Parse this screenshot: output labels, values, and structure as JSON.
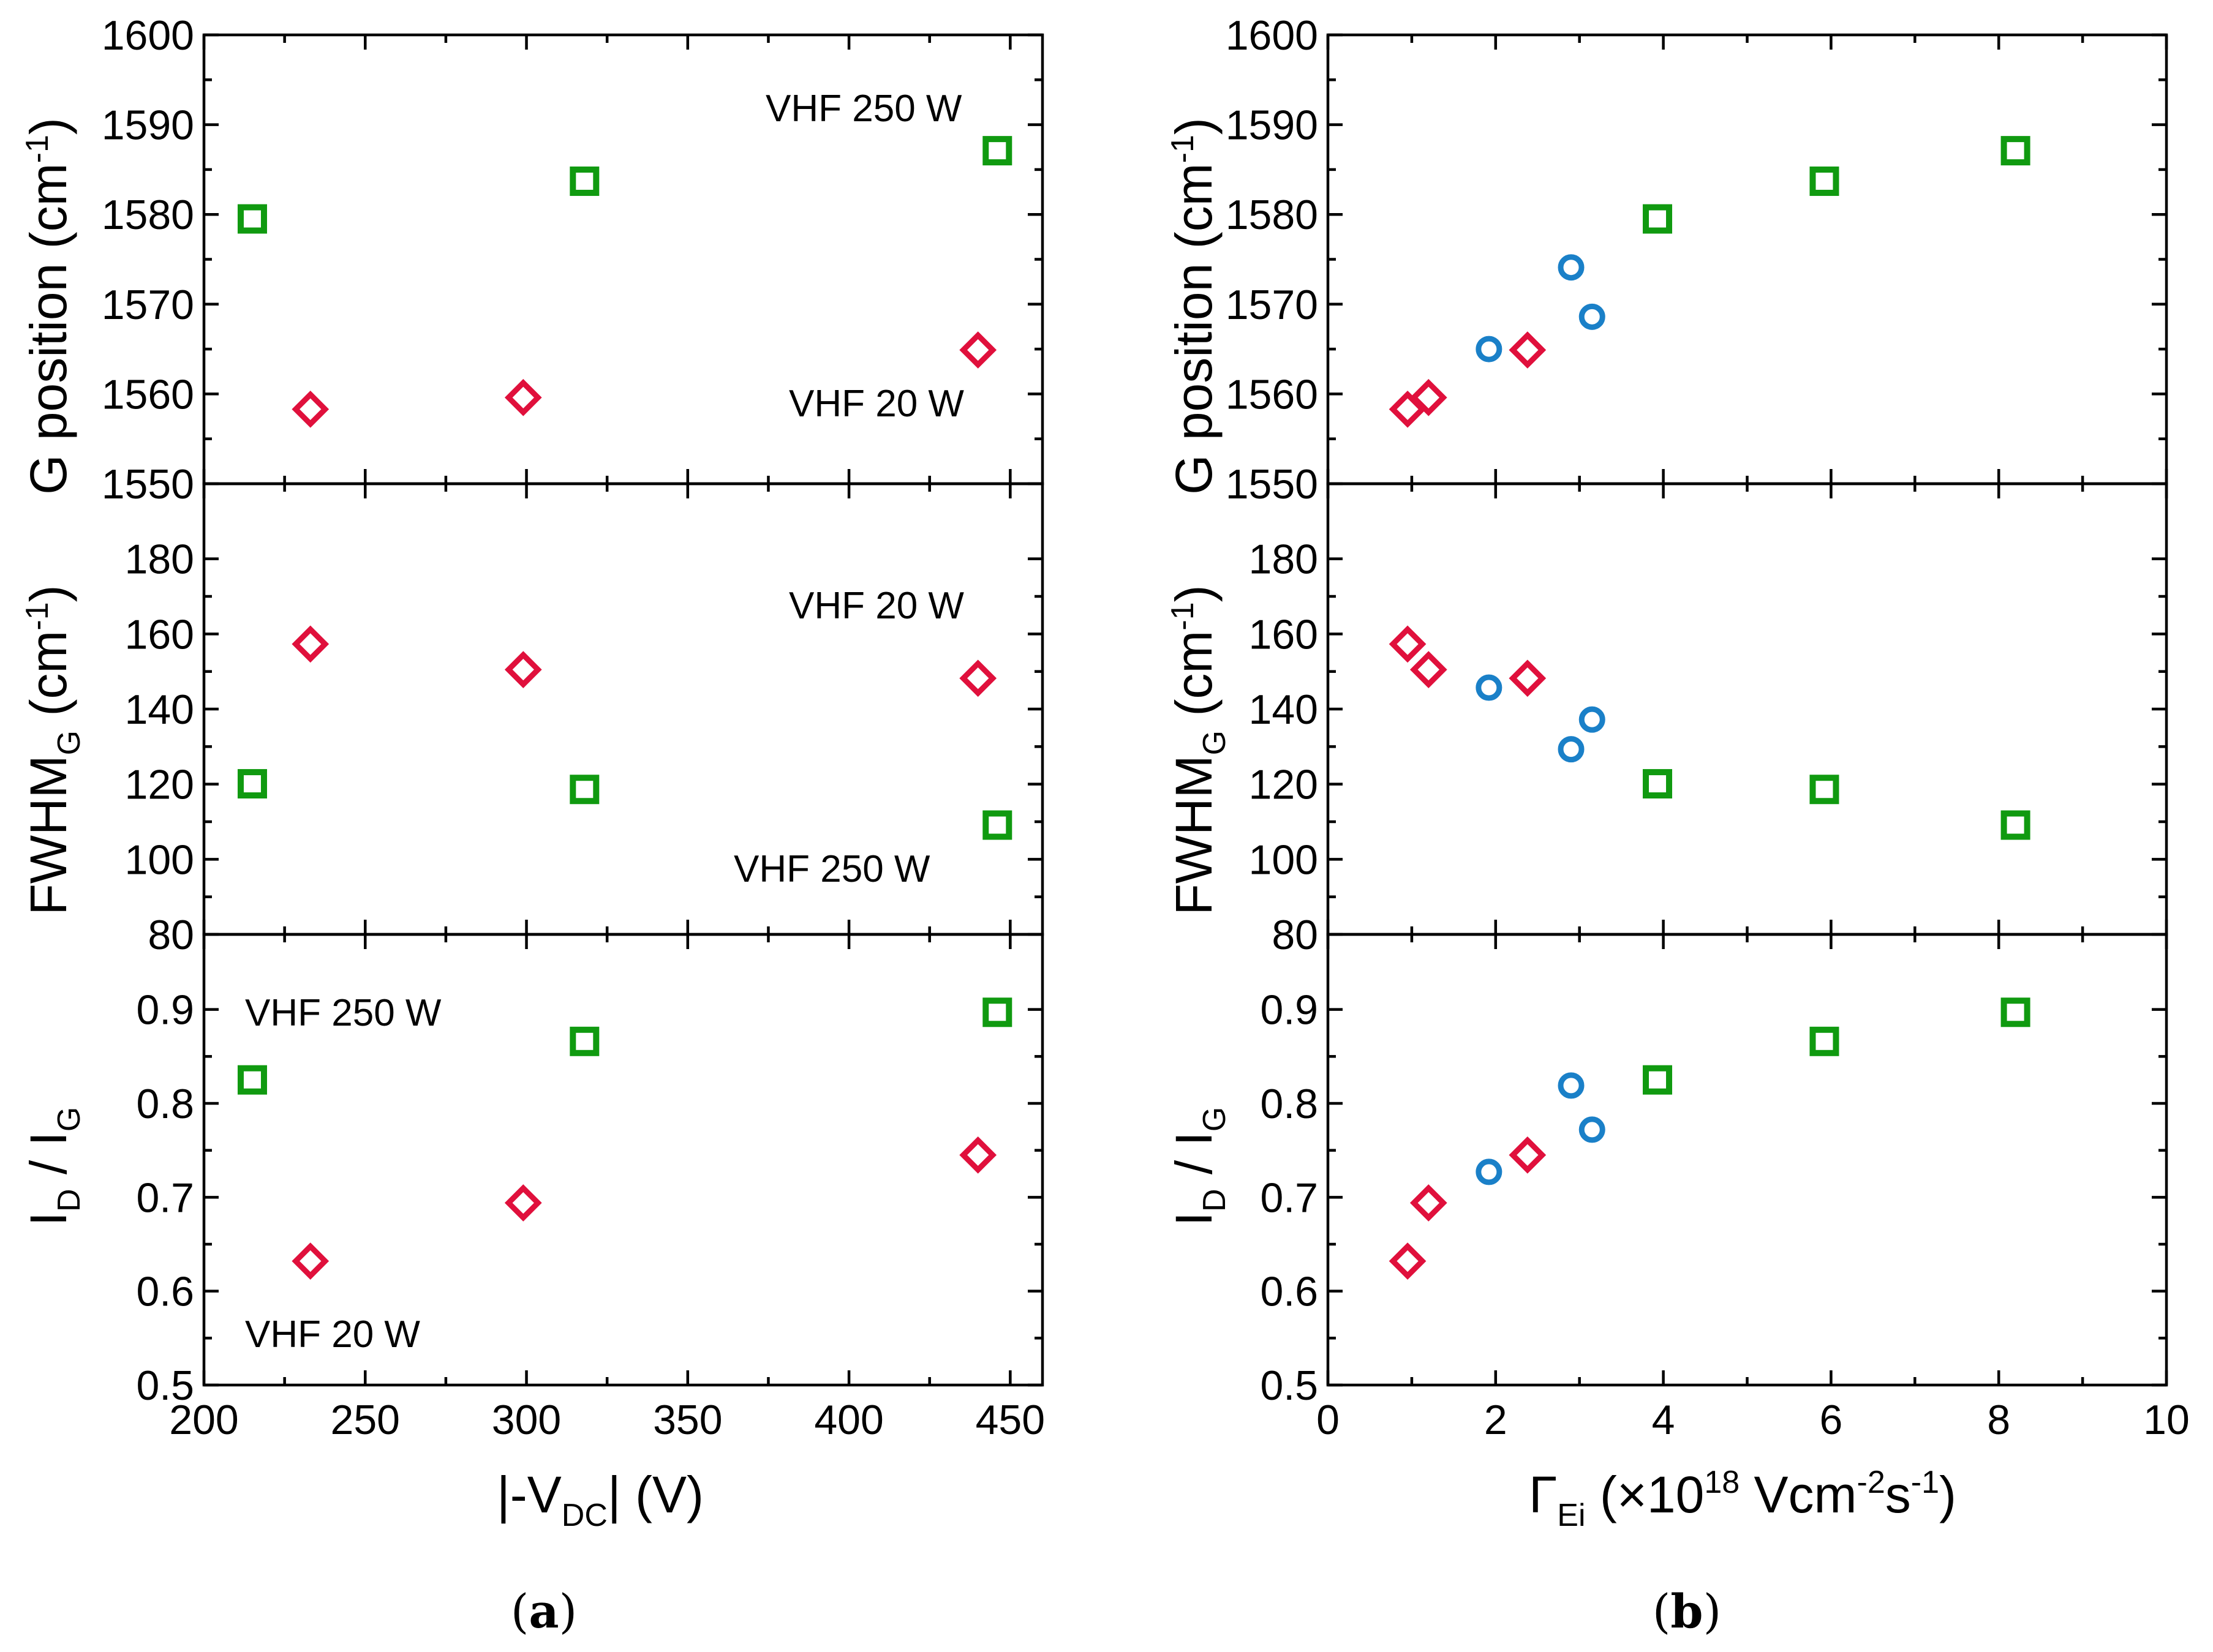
{
  "figure": {
    "panel_labels": {
      "a": {
        "open": "(",
        "letter": "a",
        "close": ")"
      },
      "b": {
        "open": "(",
        "letter": "b",
        "close": ")"
      }
    },
    "left": {
      "xlabel": {
        "pre": "|-V",
        "sub": "DC",
        "post": "| (V)"
      },
      "xticks": [
        "200",
        "250",
        "300",
        "350",
        "400",
        "450"
      ]
    },
    "right": {
      "xlabel": {
        "pre": "Γ",
        "sub": "Ei",
        "mid": " (×10",
        "sup1": "18",
        "mid2": " Vcm",
        "sup2": "-2",
        "mid3": "s",
        "sup3": "-1",
        "post": ")"
      },
      "xticks": [
        "0",
        "2",
        "4",
        "6",
        "8",
        "10"
      ]
    },
    "rows": [
      {
        "ylabel": {
          "pre": "G position (cm",
          "sup": "-1",
          "post": ")"
        },
        "yticks": [
          "1550",
          "1560",
          "1570",
          "1580",
          "1590",
          "1600"
        ]
      },
      {
        "ylabel": {
          "pre": "FWHM",
          "sub": "G",
          "post": " (cm",
          "sup": "-1",
          "post2": ")"
        },
        "yticks": [
          "80",
          "100",
          "120",
          "140",
          "160",
          "180"
        ]
      },
      {
        "ylabel": {
          "pre": "I",
          "sub1": "D",
          "mid": " / I",
          "sub2": "G"
        },
        "yticks": [
          "0.5",
          "0.6",
          "0.7",
          "0.8",
          "0.9"
        ]
      }
    ],
    "annotations": {
      "gpos_250": "VHF 250 W",
      "gpos_20": "VHF 20 W",
      "fwhm_20": "VHF 20 W",
      "fwhm_250": "VHF 250 W",
      "ratio_250": "VHF 250 W",
      "ratio_20": "VHF 20 W"
    },
    "colors": {
      "green": "#109a10",
      "red": "#e0103c",
      "blue": "#1a80c8"
    }
  },
  "chart_data": [
    {
      "type": "scatter",
      "panel": "(a) top",
      "xlabel": "|-VDC| (V)",
      "ylabel": "G position (cm-1)",
      "xlim": [
        200,
        460
      ],
      "ylim": [
        1550,
        1600
      ],
      "series": [
        {
          "name": "VHF 250 W",
          "marker": "square",
          "color": "#109a10",
          "points": [
            [
              215,
              1579.5
            ],
            [
              318,
              1583.7
            ],
            [
              446,
              1587.1
            ]
          ]
        },
        {
          "name": "VHF 20 W",
          "marker": "diamond",
          "color": "#e0103c",
          "points": [
            [
              233,
              1558.3
            ],
            [
              299,
              1559.6
            ],
            [
              440,
              1564.9
            ]
          ]
        }
      ]
    },
    {
      "type": "scatter",
      "panel": "(a) middle",
      "xlabel": "|-VDC| (V)",
      "ylabel": "FWHMG (cm-1)",
      "xlim": [
        200,
        460
      ],
      "ylim": [
        80,
        200
      ],
      "series": [
        {
          "name": "VHF 20 W",
          "marker": "diamond",
          "color": "#e0103c",
          "points": [
            [
              233,
              157.3
            ],
            [
              299,
              150.5
            ],
            [
              440,
              148.2
            ]
          ]
        },
        {
          "name": "VHF 250 W",
          "marker": "square",
          "color": "#109a10",
          "points": [
            [
              215,
              120.1
            ],
            [
              318,
              118.6
            ],
            [
              446,
              109.1
            ]
          ]
        }
      ]
    },
    {
      "type": "scatter",
      "panel": "(a) bottom",
      "xlabel": "|-VDC| (V)",
      "ylabel": "ID / IG",
      "xlim": [
        200,
        460
      ],
      "ylim": [
        0.5,
        0.98
      ],
      "series": [
        {
          "name": "VHF 250 W",
          "marker": "square",
          "color": "#109a10",
          "points": [
            [
              215,
              0.825
            ],
            [
              318,
              0.866
            ],
            [
              446,
              0.897
            ]
          ]
        },
        {
          "name": "VHF 20 W",
          "marker": "diamond",
          "color": "#e0103c",
          "points": [
            [
              233,
              0.632
            ],
            [
              299,
              0.694
            ],
            [
              440,
              0.745
            ]
          ]
        }
      ]
    },
    {
      "type": "scatter",
      "panel": "(b) top",
      "xlabel": "ΓEi (×10^18 Vcm-2s-1)",
      "ylabel": "G position (cm-1)",
      "xlim": [
        0,
        10
      ],
      "ylim": [
        1550,
        1600
      ],
      "series": [
        {
          "name": "diamond",
          "marker": "diamond",
          "color": "#e0103c",
          "points": [
            [
              0.95,
              1558.3
            ],
            [
              1.2,
              1559.6
            ],
            [
              2.38,
              1564.9
            ]
          ]
        },
        {
          "name": "circle",
          "marker": "circle",
          "color": "#1a80c8",
          "points": [
            [
              1.92,
              1565.0
            ],
            [
              2.9,
              1574.1
            ],
            [
              3.15,
              1568.6
            ]
          ]
        },
        {
          "name": "square",
          "marker": "square",
          "color": "#109a10",
          "points": [
            [
              3.93,
              1579.5
            ],
            [
              5.92,
              1583.7
            ],
            [
              8.2,
              1587.1
            ]
          ]
        }
      ]
    },
    {
      "type": "scatter",
      "panel": "(b) middle",
      "xlabel": "ΓEi (×10^18 Vcm-2s-1)",
      "ylabel": "FWHMG (cm-1)",
      "xlim": [
        0,
        10
      ],
      "ylim": [
        80,
        200
      ],
      "series": [
        {
          "name": "diamond",
          "marker": "diamond",
          "color": "#e0103c",
          "points": [
            [
              0.95,
              157.3
            ],
            [
              1.2,
              150.5
            ],
            [
              2.38,
              148.2
            ]
          ]
        },
        {
          "name": "circle",
          "marker": "circle",
          "color": "#1a80c8",
          "points": [
            [
              1.92,
              145.7
            ],
            [
              2.9,
              129.3
            ],
            [
              3.15,
              137.2
            ]
          ]
        },
        {
          "name": "square",
          "marker": "square",
          "color": "#109a10",
          "points": [
            [
              3.93,
              120.1
            ],
            [
              5.92,
              118.6
            ],
            [
              8.2,
              109.1
            ]
          ]
        }
      ]
    },
    {
      "type": "scatter",
      "panel": "(b) bottom",
      "xlabel": "ΓEi (×10^18 Vcm-2s-1)",
      "ylabel": "ID / IG",
      "xlim": [
        0,
        10
      ],
      "ylim": [
        0.5,
        0.98
      ],
      "series": [
        {
          "name": "diamond",
          "marker": "diamond",
          "color": "#e0103c",
          "points": [
            [
              0.95,
              0.632
            ],
            [
              1.2,
              0.694
            ],
            [
              2.38,
              0.745
            ]
          ]
        },
        {
          "name": "circle",
          "marker": "circle",
          "color": "#1a80c8",
          "points": [
            [
              1.92,
              0.727
            ],
            [
              2.9,
              0.819
            ],
            [
              3.15,
              0.772
            ]
          ]
        },
        {
          "name": "square",
          "marker": "square",
          "color": "#109a10",
          "points": [
            [
              3.93,
              0.825
            ],
            [
              5.92,
              0.866
            ],
            [
              8.2,
              0.897
            ]
          ]
        }
      ]
    }
  ]
}
